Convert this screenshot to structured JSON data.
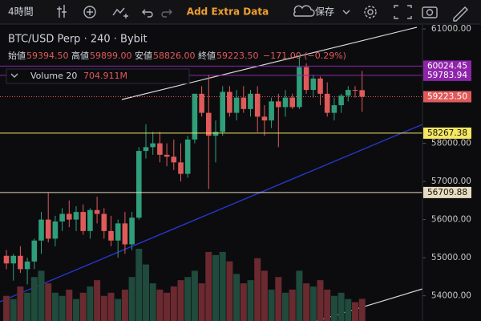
{
  "toolbar": {
    "interval": "4時間",
    "add_data": "Add Extra Data",
    "save": "保存"
  },
  "legend": {
    "symbol": "BTC/USD Perp · 240 · Bybit",
    "ohlc": [
      {
        "label": "始値",
        "value": "59394.50"
      },
      {
        "label": "高値",
        "value": "59899.00"
      },
      {
        "label": "安値",
        "value": "58826.00"
      },
      {
        "label": "終値",
        "value": "59223.50"
      }
    ],
    "change": "−171.00 (−0.29%)"
  },
  "chart_data": {
    "type": "candlestick",
    "up_color": "#2f9e7a",
    "down_color": "#e05a5a",
    "volume_up_color": "#1f4a3c",
    "volume_down_color": "#6a2a30",
    "ylim": [
      53340,
      61107
    ],
    "yticks": [
      {
        "value": 61000,
        "label": "61000.00"
      },
      {
        "value": 58000,
        "label": "58000.00"
      },
      {
        "value": 57000,
        "label": "57000.00"
      },
      {
        "value": 56000,
        "label": "56000.00"
      },
      {
        "value": 55000,
        "label": "55000.00"
      },
      {
        "value": 54000,
        "label": "54000.00"
      }
    ],
    "levels": [
      {
        "value": 60024.45,
        "label": "60024.45",
        "color": "#8e24aa"
      },
      {
        "value": 59783.94,
        "label": "59783.94",
        "color": "#8e24aa"
      },
      {
        "value": 59223.5,
        "label": "59223.50",
        "color": "#e05a5a"
      },
      {
        "value": 58267.38,
        "label": "58267.38",
        "color": "#f5e663"
      },
      {
        "value": 56709.88,
        "label": "56709.88",
        "color": "#e8dcc0"
      }
    ],
    "volume_name": "Volume 20",
    "volume_label": "704.911M",
    "candles": [
      {
        "open": 55050,
        "high": 55200,
        "low": 54700,
        "close": 54850
      },
      {
        "open": 54850,
        "high": 55100,
        "low": 54400,
        "close": 55050
      },
      {
        "open": 55050,
        "high": 55300,
        "low": 54600,
        "close": 54700
      },
      {
        "open": 54700,
        "high": 55000,
        "low": 54300,
        "close": 54900
      },
      {
        "open": 54900,
        "high": 55500,
        "low": 54700,
        "close": 55450
      },
      {
        "open": 55450,
        "high": 56200,
        "low": 55100,
        "close": 56000
      },
      {
        "open": 56000,
        "high": 56700,
        "low": 55400,
        "close": 55500
      },
      {
        "open": 55500,
        "high": 56100,
        "low": 55300,
        "close": 55950
      },
      {
        "open": 55950,
        "high": 56300,
        "low": 55700,
        "close": 56150
      },
      {
        "open": 56150,
        "high": 56500,
        "low": 55800,
        "close": 56000
      },
      {
        "open": 56000,
        "high": 56350,
        "low": 55700,
        "close": 56200
      },
      {
        "open": 56200,
        "high": 56400,
        "low": 55600,
        "close": 55700
      },
      {
        "open": 55700,
        "high": 56300,
        "low": 55500,
        "close": 56250
      },
      {
        "open": 56250,
        "high": 56600,
        "low": 55900,
        "close": 56150
      },
      {
        "open": 56150,
        "high": 56300,
        "low": 55500,
        "close": 55700
      },
      {
        "open": 55700,
        "high": 56100,
        "low": 55300,
        "close": 55450
      },
      {
        "open": 55450,
        "high": 56000,
        "low": 55000,
        "close": 55900
      },
      {
        "open": 55900,
        "high": 56200,
        "low": 55100,
        "close": 55350
      },
      {
        "open": 55350,
        "high": 56200,
        "low": 55200,
        "close": 56050
      },
      {
        "open": 56050,
        "high": 57900,
        "low": 56000,
        "close": 57800
      },
      {
        "open": 57800,
        "high": 58500,
        "low": 57600,
        "close": 57900
      },
      {
        "open": 57900,
        "high": 58300,
        "low": 57700,
        "close": 58000
      },
      {
        "open": 58000,
        "high": 58300,
        "low": 57500,
        "close": 57700
      },
      {
        "open": 57700,
        "high": 58000,
        "low": 57400,
        "close": 57650
      },
      {
        "open": 57650,
        "high": 58100,
        "low": 57300,
        "close": 57500
      },
      {
        "open": 57500,
        "high": 58000,
        "low": 57000,
        "close": 57200
      },
      {
        "open": 57200,
        "high": 58200,
        "low": 57100,
        "close": 58100
      },
      {
        "open": 58100,
        "high": 59300,
        "low": 58000,
        "close": 59300
      },
      {
        "open": 59300,
        "high": 59500,
        "low": 58700,
        "close": 58800
      },
      {
        "open": 58800,
        "high": 59800,
        "low": 56800,
        "close": 58200
      },
      {
        "open": 58200,
        "high": 58600,
        "low": 57500,
        "close": 58300
      },
      {
        "open": 58300,
        "high": 59500,
        "low": 58200,
        "close": 59350
      },
      {
        "open": 59350,
        "high": 59500,
        "low": 58700,
        "close": 58800
      },
      {
        "open": 58800,
        "high": 59400,
        "low": 58600,
        "close": 59200
      },
      {
        "open": 59200,
        "high": 59500,
        "low": 58800,
        "close": 58900
      },
      {
        "open": 58900,
        "high": 59400,
        "low": 58700,
        "close": 59300
      },
      {
        "open": 59300,
        "high": 59500,
        "low": 58300,
        "close": 58700
      },
      {
        "open": 58700,
        "high": 59000,
        "low": 58200,
        "close": 58600
      },
      {
        "open": 58600,
        "high": 59200,
        "low": 58400,
        "close": 59100
      },
      {
        "open": 59100,
        "high": 59300,
        "low": 57900,
        "close": 58950
      },
      {
        "open": 58950,
        "high": 59400,
        "low": 58700,
        "close": 59200
      },
      {
        "open": 59200,
        "high": 59300,
        "low": 58900,
        "close": 58950
      },
      {
        "open": 58950,
        "high": 60300,
        "low": 58900,
        "close": 60000
      },
      {
        "open": 60000,
        "high": 60100,
        "low": 59300,
        "close": 59400
      },
      {
        "open": 59400,
        "high": 59800,
        "low": 59200,
        "close": 59700
      },
      {
        "open": 59700,
        "high": 59750,
        "low": 59000,
        "close": 59300
      },
      {
        "open": 59300,
        "high": 59600,
        "low": 58700,
        "close": 58800
      },
      {
        "open": 58800,
        "high": 59200,
        "low": 58600,
        "close": 59000
      },
      {
        "open": 59000,
        "high": 59300,
        "low": 58800,
        "close": 59250
      },
      {
        "open": 59250,
        "high": 59500,
        "low": 59100,
        "close": 59400
      },
      {
        "open": 59400,
        "high": 59500,
        "low": 59200,
        "close": 59394.5
      },
      {
        "open": 59394.5,
        "high": 59899,
        "low": 58826,
        "close": 59223.5
      }
    ],
    "volumes": [
      800,
      700,
      1100,
      900,
      1400,
      1600,
      1200,
      900,
      800,
      1000,
      700,
      900,
      1100,
      1300,
      800,
      900,
      700,
      1000,
      1400,
      2300,
      1800,
      1200,
      1000,
      900,
      1100,
      1300,
      1400,
      1600,
      1200,
      2200,
      2100,
      2200,
      1900,
      1500,
      1200,
      1300,
      2000,
      1600,
      1000,
      1400,
      900,
      1000,
      1600,
      1200,
      1100,
      1300,
      1000,
      800,
      900,
      700,
      600,
      704.911
    ]
  }
}
